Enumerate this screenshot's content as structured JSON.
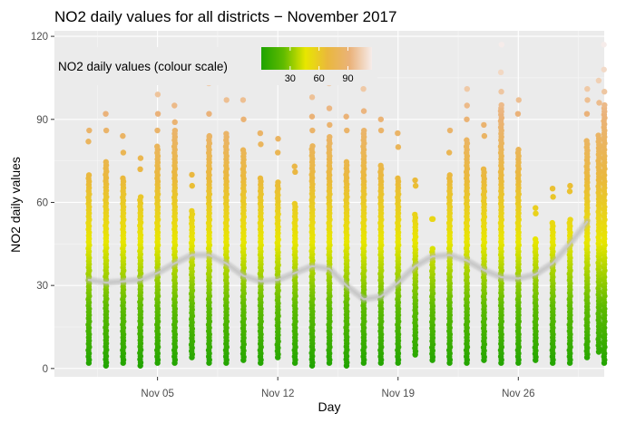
{
  "chart_data": {
    "type": "scatter",
    "title": "NO2 daily values for all districts − November 2017",
    "xlabel": "Day",
    "ylabel": "NO2 daily values",
    "x_range": [
      "2017-10-30",
      "2017-12-01"
    ],
    "ylim": [
      -3,
      122
    ],
    "x_ticks": [
      {
        "date": "2017-11-05",
        "label": "Nov 05"
      },
      {
        "date": "2017-11-12",
        "label": "Nov 12"
      },
      {
        "date": "2017-11-19",
        "label": "Nov 19"
      },
      {
        "date": "2017-11-26",
        "label": "Nov 26"
      }
    ],
    "y_ticks": [
      {
        "value": 0,
        "label": "0"
      },
      {
        "value": 30,
        "label": "30"
      },
      {
        "value": 60,
        "label": "60"
      },
      {
        "value": 90,
        "label": "90"
      },
      {
        "value": 120,
        "label": "120"
      }
    ],
    "grid": true,
    "colour_scale": {
      "title": "NO2 daily values (colour scale)",
      "domain": [
        0,
        115
      ],
      "colors": [
        "#1ea300",
        "#5fbb00",
        "#e8e600",
        "#eab83d",
        "#eab27a",
        "#f6ecea"
      ],
      "ticks": [
        {
          "value": 30,
          "label": "30"
        },
        {
          "value": 60,
          "label": "60"
        },
        {
          "value": 90,
          "label": "90"
        }
      ],
      "legend_position": "top-left"
    },
    "daily": [
      {
        "date": "2017-11-01",
        "min": 2,
        "max": 86,
        "outliers": [
          82
        ]
      },
      {
        "date": "2017-11-02",
        "min": 1,
        "max": 92,
        "outliers": [
          86
        ]
      },
      {
        "date": "2017-11-03",
        "min": 2,
        "max": 84,
        "outliers": [
          78
        ]
      },
      {
        "date": "2017-11-04",
        "min": 1,
        "max": 76,
        "outliers": [
          72
        ]
      },
      {
        "date": "2017-11-05",
        "min": 2,
        "max": 99,
        "outliers": [
          92,
          86
        ]
      },
      {
        "date": "2017-11-06",
        "min": 2,
        "max": 105,
        "outliers": [
          95,
          89
        ]
      },
      {
        "date": "2017-11-07",
        "min": 4,
        "max": 70,
        "outliers": [
          66
        ]
      },
      {
        "date": "2017-11-08",
        "min": 2,
        "max": 103,
        "outliers": [
          92,
          84
        ]
      },
      {
        "date": "2017-11-09",
        "min": 2,
        "max": 104,
        "outliers": [
          97
        ]
      },
      {
        "date": "2017-11-10",
        "min": 3,
        "max": 97,
        "outliers": [
          90
        ]
      },
      {
        "date": "2017-11-11",
        "min": 2,
        "max": 85,
        "outliers": [
          81
        ]
      },
      {
        "date": "2017-11-12",
        "min": 4,
        "max": 83,
        "outliers": [
          78
        ]
      },
      {
        "date": "2017-11-13",
        "min": 2,
        "max": 73,
        "outliers": [
          71
        ]
      },
      {
        "date": "2017-11-14",
        "min": 1,
        "max": 98,
        "outliers": [
          91,
          86
        ]
      },
      {
        "date": "2017-11-15",
        "min": 2,
        "max": 103,
        "outliers": [
          94,
          88
        ]
      },
      {
        "date": "2017-11-16",
        "min": 1,
        "max": 91,
        "outliers": [
          86
        ]
      },
      {
        "date": "2017-11-17",
        "min": 2,
        "max": 106,
        "outliers": [
          101,
          93
        ]
      },
      {
        "date": "2017-11-18",
        "min": 2,
        "max": 90,
        "outliers": [
          86
        ]
      },
      {
        "date": "2017-11-19",
        "min": 2,
        "max": 85,
        "outliers": [
          80
        ]
      },
      {
        "date": "2017-11-20",
        "min": 5,
        "max": 68,
        "outliers": [
          66
        ]
      },
      {
        "date": "2017-11-21",
        "min": 3,
        "max": 54,
        "outliers": [
          54
        ]
      },
      {
        "date": "2017-11-22",
        "min": 2,
        "max": 86,
        "outliers": [
          78
        ]
      },
      {
        "date": "2017-11-23",
        "min": 2,
        "max": 101,
        "outliers": [
          95,
          90
        ]
      },
      {
        "date": "2017-11-24",
        "min": 3,
        "max": 88,
        "outliers": [
          84
        ]
      },
      {
        "date": "2017-11-25",
        "min": 2,
        "max": 117,
        "outliers": [
          107,
          100,
          93
        ]
      },
      {
        "date": "2017-11-26",
        "min": 2,
        "max": 97,
        "outliers": [
          92
        ]
      },
      {
        "date": "2017-11-27",
        "min": 3,
        "max": 58,
        "outliers": [
          56
        ]
      },
      {
        "date": "2017-11-28",
        "min": 2,
        "max": 65,
        "outliers": [
          62
        ]
      },
      {
        "date": "2017-11-29",
        "min": 2,
        "max": 66,
        "outliers": [
          64
        ]
      },
      {
        "date": "2017-11-30",
        "min": 4,
        "max": 101,
        "outliers": [
          97,
          92
        ]
      },
      {
        "date": "2017-12-01",
        "min": 2,
        "max": 117,
        "outliers": [
          108,
          100
        ]
      },
      {
        "date": "2017-12-01",
        "min": 6,
        "max": 104,
        "outliers": [
          96
        ]
      }
    ],
    "trend": [
      {
        "date": "2017-11-01",
        "y": 32
      },
      {
        "date": "2017-11-02",
        "y": 31
      },
      {
        "date": "2017-11-03",
        "y": 31.5
      },
      {
        "date": "2017-11-04",
        "y": 32
      },
      {
        "date": "2017-11-05",
        "y": 34.5
      },
      {
        "date": "2017-11-06",
        "y": 38
      },
      {
        "date": "2017-11-07",
        "y": 41
      },
      {
        "date": "2017-11-08",
        "y": 41
      },
      {
        "date": "2017-11-09",
        "y": 38
      },
      {
        "date": "2017-11-10",
        "y": 33.5
      },
      {
        "date": "2017-11-11",
        "y": 31.5
      },
      {
        "date": "2017-11-12",
        "y": 32
      },
      {
        "date": "2017-11-13",
        "y": 34.5
      },
      {
        "date": "2017-11-14",
        "y": 37
      },
      {
        "date": "2017-11-15",
        "y": 36
      },
      {
        "date": "2017-11-16",
        "y": 30
      },
      {
        "date": "2017-11-17",
        "y": 25
      },
      {
        "date": "2017-11-18",
        "y": 26
      },
      {
        "date": "2017-11-19",
        "y": 31
      },
      {
        "date": "2017-11-20",
        "y": 37
      },
      {
        "date": "2017-11-21",
        "y": 40.5
      },
      {
        "date": "2017-11-22",
        "y": 41
      },
      {
        "date": "2017-11-23",
        "y": 39
      },
      {
        "date": "2017-11-24",
        "y": 35.5
      },
      {
        "date": "2017-11-25",
        "y": 33
      },
      {
        "date": "2017-11-26",
        "y": 32.5
      },
      {
        "date": "2017-11-27",
        "y": 34
      },
      {
        "date": "2017-11-28",
        "y": 38
      },
      {
        "date": "2017-11-29",
        "y": 45
      },
      {
        "date": "2017-11-30",
        "y": 53
      }
    ]
  }
}
